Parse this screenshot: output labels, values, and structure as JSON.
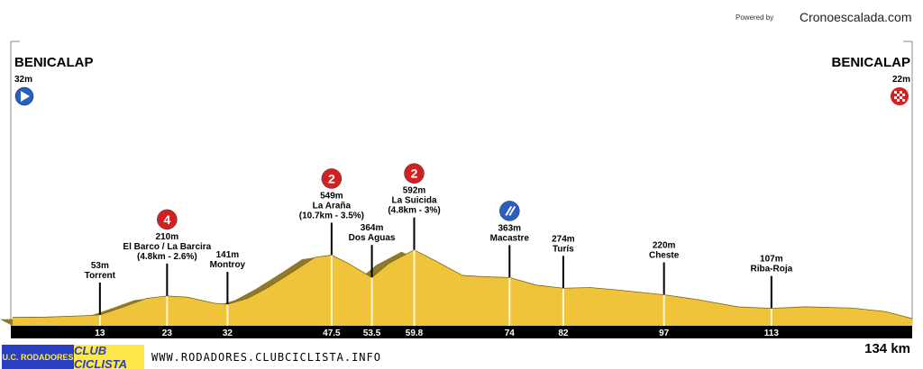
{
  "header": {
    "powered_by": "Powered by",
    "brand": "Cronoescalada.com",
    "website": "WWW.RODADORES.CLUBCICLISTA.INFO",
    "logo_left": "U.C. RODADORES",
    "logo_right": "CLUB CICLISTA"
  },
  "chart_data": {
    "type": "area",
    "total_distance": "134 km",
    "xlim": [
      0,
      134
    ],
    "start": {
      "name": "BENICALAP",
      "elev": "32m",
      "icon": "play-icon"
    },
    "finish": {
      "name": "BENICALAP",
      "elev": "22m",
      "icon": "checkered-flag-icon"
    },
    "profile": [
      [
        0,
        32
      ],
      [
        5,
        35
      ],
      [
        10,
        45
      ],
      [
        13,
        53
      ],
      [
        16,
        110
      ],
      [
        20,
        190
      ],
      [
        23,
        210
      ],
      [
        26,
        200
      ],
      [
        30,
        150
      ],
      [
        32,
        141
      ],
      [
        35,
        190
      ],
      [
        38,
        280
      ],
      [
        42,
        420
      ],
      [
        45,
        530
      ],
      [
        47.5,
        549
      ],
      [
        50,
        480
      ],
      [
        53.5,
        364
      ],
      [
        56,
        480
      ],
      [
        59.8,
        592
      ],
      [
        63,
        500
      ],
      [
        67,
        380
      ],
      [
        70,
        370
      ],
      [
        74,
        363
      ],
      [
        78,
        300
      ],
      [
        82,
        274
      ],
      [
        86,
        280
      ],
      [
        90,
        260
      ],
      [
        97,
        220
      ],
      [
        102,
        180
      ],
      [
        108,
        120
      ],
      [
        113,
        107
      ],
      [
        118,
        120
      ],
      [
        125,
        110
      ],
      [
        130,
        80
      ],
      [
        134,
        22
      ]
    ],
    "points": [
      {
        "km": "13",
        "elev": "53m",
        "name": "Torrent"
      },
      {
        "km": "23",
        "elev": "210m",
        "name": "El Barco / La Barcira",
        "climb": "(4.8km - 2.6%)",
        "cat": "4",
        "color": "#d42020"
      },
      {
        "km": "32",
        "elev": "141m",
        "name": "Montroy"
      },
      {
        "km": "47.5",
        "elev": "549m",
        "name": "La Araña",
        "climb": "(10.7km - 3.5%)",
        "cat": "2",
        "color": "#d42020"
      },
      {
        "km": "53.5",
        "elev": "364m",
        "name": "Dos Aguas"
      },
      {
        "km": "59.8",
        "elev": "592m",
        "name": "La Suicida",
        "climb": "(4.8km - 3%)",
        "cat": "2",
        "color": "#d42020"
      },
      {
        "km": "74",
        "elev": "363m",
        "name": "Macastre",
        "cat": "sprint",
        "color": "#2a5fc0"
      },
      {
        "km": "82",
        "elev": "274m",
        "name": "Turís"
      },
      {
        "km": "97",
        "elev": "220m",
        "name": "Cheste"
      },
      {
        "km": "113",
        "elev": "107m",
        "name": "Riba-Roja"
      }
    ],
    "colors": {
      "fill": "#f0c43a",
      "shadow": "#8f7a2c",
      "axis": "#000000"
    }
  }
}
